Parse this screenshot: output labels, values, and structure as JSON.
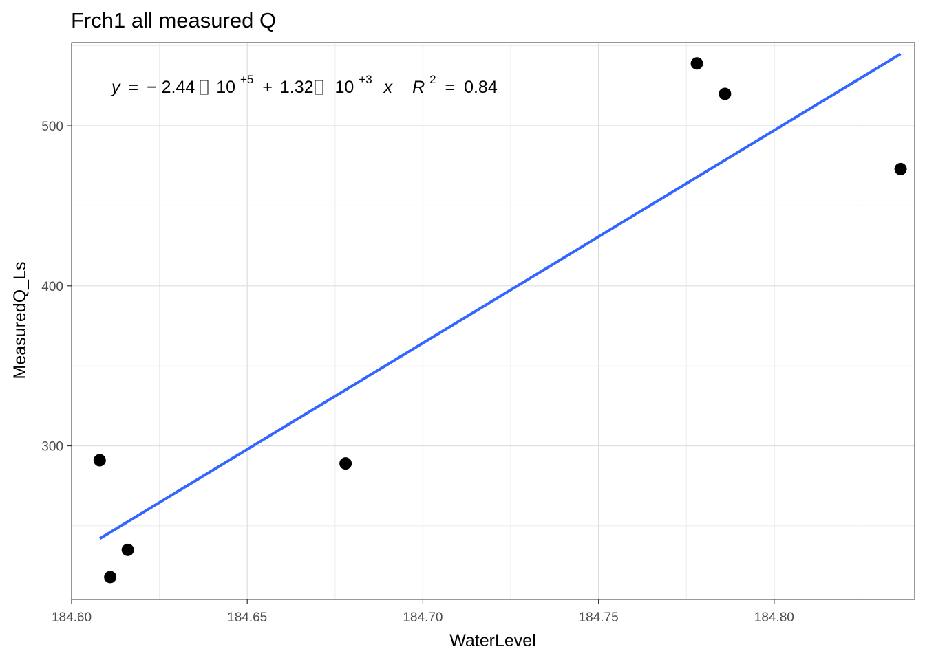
{
  "chart_data": {
    "type": "scatter",
    "title": "Frch1 all measured Q",
    "xlabel": "WaterLevel",
    "ylabel": "MeasuredQ_Ls",
    "xlim": [
      184.6,
      184.84
    ],
    "ylim": [
      204,
      552
    ],
    "x_ticks": [
      184.6,
      184.65,
      184.7,
      184.75,
      184.8
    ],
    "x_tick_labels": [
      "184.60",
      "184.65",
      "184.70",
      "184.75",
      "184.80"
    ],
    "y_ticks": [
      300,
      400,
      500
    ],
    "y_tick_labels": [
      "300",
      "400",
      "500"
    ],
    "grid": true,
    "points": [
      {
        "x": 184.608,
        "y": 291
      },
      {
        "x": 184.611,
        "y": 218
      },
      {
        "x": 184.616,
        "y": 235
      },
      {
        "x": 184.678,
        "y": 289
      },
      {
        "x": 184.778,
        "y": 539
      },
      {
        "x": 184.786,
        "y": 520
      },
      {
        "x": 184.836,
        "y": 473
      }
    ],
    "fit_line": {
      "color": "#3366ff",
      "x": [
        184.608,
        184.836
      ],
      "y": [
        242,
        545
      ]
    },
    "point_color": "#000000",
    "annotation": {
      "y_sym": "y",
      "eq": "=",
      "minus": "−",
      "c1": "2.44",
      "ten1": "10",
      "exp1": "+5",
      "plus": "+",
      "c2": "1.32",
      "ten2": "10",
      "exp2": "+3",
      "x_sym": "x",
      "r_sym": "R",
      "r_exp": "2",
      "r_eq": "=",
      "r_val": "0.84"
    }
  }
}
